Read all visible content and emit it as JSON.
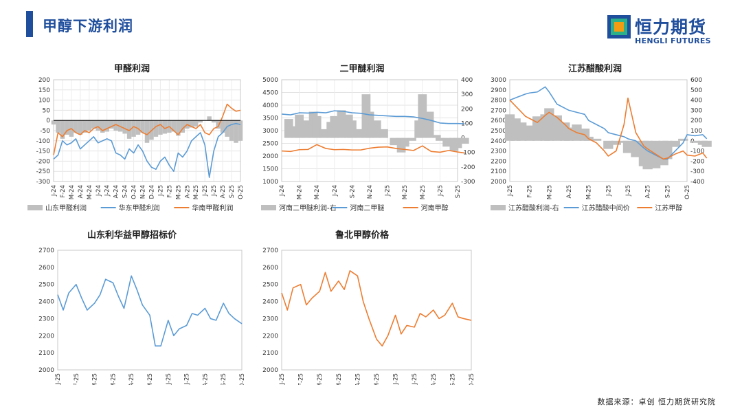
{
  "header": {
    "title": "甲醇下游利润"
  },
  "logo": {
    "name_cn": "恒力期货",
    "name_en": "HENGLI FUTURES",
    "colors": {
      "blue": "#1f4e9c",
      "orange": "#f39c12",
      "green": "#2bb08a"
    }
  },
  "footer": {
    "source": "数据来源：卓创  恒力期货研究院"
  },
  "chart_data": [
    {
      "id": "c1",
      "type": "line+area",
      "title": "甲醛利润",
      "ylim": [
        -300,
        200
      ],
      "yticks": [
        200,
        150,
        100,
        50,
        0,
        -50,
        -100,
        -150,
        -200,
        -250,
        -300
      ],
      "x_labels": [
        "J-24",
        "F-24",
        "M-24",
        "A-24",
        "M-24",
        "J-24",
        "J-24",
        "A-24",
        "S-24",
        "O-24",
        "N-24",
        "D-24",
        "J-25",
        "F-25",
        "M-25",
        "A-25",
        "M-25",
        "J-25",
        "J-25",
        "A-25",
        "S-25",
        "O-25"
      ],
      "legend": "bottom",
      "grid": true,
      "series": [
        {
          "name": "山东甲醛利润",
          "kind": "area",
          "color": "#bfbfbf",
          "x": [
            0,
            0.5,
            1,
            1.5,
            2,
            2.5,
            3,
            3.5,
            4,
            4.5,
            5,
            5.5,
            6,
            6.5,
            7,
            7.5,
            8,
            8.5,
            9,
            9.5,
            10,
            10.5,
            11,
            11.5,
            12,
            12.5,
            13,
            13.5,
            14,
            14.5,
            15,
            15.5,
            16,
            16.5,
            17,
            17.5,
            18,
            18.5,
            19,
            19.5,
            20,
            20.5,
            21
          ],
          "y": [
            -20,
            -60,
            -90,
            -70,
            -80,
            -60,
            -70,
            -60,
            -50,
            -40,
            -50,
            -60,
            -55,
            -40,
            -50,
            -55,
            -65,
            -90,
            -80,
            -70,
            -60,
            -110,
            -95,
            -80,
            -70,
            -65,
            -60,
            -55,
            -75,
            -60,
            -40,
            -35,
            -30,
            -10,
            0,
            20,
            -10,
            -40,
            -60,
            -80,
            -100,
            -110,
            -100
          ]
        },
        {
          "name": "华东甲醛利润",
          "kind": "line",
          "color": "#5b9bd5",
          "x": [
            0,
            0.5,
            1,
            1.5,
            2,
            2.5,
            3,
            3.5,
            4,
            4.5,
            5,
            5.5,
            6,
            6.5,
            7,
            7.5,
            8,
            8.5,
            9,
            9.5,
            10,
            10.5,
            11,
            11.5,
            12,
            12.5,
            13,
            13.5,
            14,
            14.5,
            15,
            15.5,
            16,
            16.5,
            17,
            17.5,
            18,
            18.5,
            19,
            19.5,
            20,
            20.5,
            21
          ],
          "y": [
            -190,
            -170,
            -100,
            -120,
            -110,
            -90,
            -140,
            -120,
            -100,
            -80,
            -110,
            -100,
            -90,
            -100,
            -160,
            -170,
            -190,
            -140,
            -160,
            -120,
            -150,
            -200,
            -230,
            -240,
            -200,
            -180,
            -220,
            -250,
            -160,
            -180,
            -150,
            -100,
            -80,
            -60,
            -120,
            -280,
            -150,
            -80,
            -60,
            -30,
            -20,
            -15,
            -20
          ]
        },
        {
          "name": "华南甲醛利润",
          "kind": "line",
          "color": "#ed7d31",
          "x": [
            0,
            0.5,
            1,
            1.5,
            2,
            2.5,
            3,
            3.5,
            4,
            4.5,
            5,
            5.5,
            6,
            6.5,
            7,
            7.5,
            8,
            8.5,
            9,
            9.5,
            10,
            10.5,
            11,
            11.5,
            12,
            12.5,
            13,
            13.5,
            14,
            14.5,
            15,
            15.5,
            16,
            16.5,
            17,
            17.5,
            18,
            18.5,
            19,
            19.5,
            20,
            20.5,
            21
          ],
          "y": [
            -170,
            -60,
            -80,
            -50,
            -40,
            -60,
            -70,
            -50,
            -60,
            -40,
            -30,
            -50,
            -40,
            -30,
            -20,
            -30,
            -40,
            -50,
            -30,
            -40,
            -60,
            -70,
            -50,
            -30,
            -20,
            -40,
            -30,
            -50,
            -70,
            -40,
            -20,
            -30,
            -40,
            -20,
            -60,
            -70,
            -40,
            -30,
            20,
            80,
            60,
            45,
            50
          ]
        }
      ]
    },
    {
      "id": "c2",
      "type": "line+area",
      "title": "二甲醚利润",
      "ylim": [
        1000,
        5000
      ],
      "y2lim": [
        -300,
        400
      ],
      "yticks": [
        5000,
        4500,
        4000,
        3500,
        3000,
        2500,
        2000,
        1500,
        1000
      ],
      "y2ticks": [
        400,
        300,
        200,
        100,
        0,
        -100,
        -200,
        -300
      ],
      "x_labels": [
        "J-24",
        "M-24",
        "M-24",
        "J-24",
        "S-24",
        "N-24",
        "J-25",
        "M-25",
        "M-25",
        "J-25",
        "S-25"
      ],
      "legend": "bottom",
      "grid": true,
      "series": [
        {
          "name": "河南二甲醚利润-右",
          "kind": "area",
          "axis": "right",
          "color": "#bfbfbf",
          "x": [
            0,
            0.4,
            0.8,
            1,
            1.4,
            1.8,
            2,
            2.4,
            2.8,
            3,
            3.4,
            3.8,
            4,
            4.4,
            4.8,
            5,
            5.4,
            5.8,
            6,
            6.4,
            6.8,
            7,
            7.4,
            7.8,
            8,
            8.4,
            8.8,
            9,
            9.4,
            9.8,
            10,
            10.4
          ],
          "y": [
            0,
            130,
            80,
            160,
            120,
            180,
            150,
            60,
            110,
            150,
            190,
            160,
            120,
            60,
            300,
            180,
            120,
            60,
            0,
            -50,
            -100,
            -60,
            -20,
            120,
            300,
            180,
            20,
            -20,
            -60,
            -90,
            -70,
            -40
          ]
        },
        {
          "name": "河南二甲醚",
          "kind": "line",
          "axis": "left",
          "color": "#5b9bd5",
          "x": [
            0,
            0.5,
            1,
            1.5,
            2,
            2.5,
            3,
            3.5,
            4,
            4.5,
            5,
            5.5,
            6,
            6.5,
            7,
            7.5,
            8,
            8.5,
            9,
            9.5,
            10,
            10.4
          ],
          "y": [
            3650,
            3620,
            3700,
            3690,
            3720,
            3700,
            3780,
            3760,
            3700,
            3680,
            3620,
            3600,
            3580,
            3560,
            3560,
            3540,
            3480,
            3400,
            3300,
            3280,
            3280,
            3270
          ]
        },
        {
          "name": "河南甲醇",
          "kind": "line",
          "axis": "left",
          "color": "#ed7d31",
          "x": [
            0,
            0.5,
            1,
            1.5,
            2,
            2.5,
            3,
            3.5,
            4,
            4.5,
            5,
            5.5,
            6,
            6.5,
            7,
            7.5,
            8,
            8.5,
            9,
            9.5,
            10,
            10.4
          ],
          "y": [
            2200,
            2180,
            2250,
            2260,
            2450,
            2300,
            2250,
            2260,
            2240,
            2240,
            2310,
            2350,
            2360,
            2300,
            2260,
            2220,
            2400,
            2180,
            2150,
            2220,
            2160,
            2120
          ]
        }
      ]
    },
    {
      "id": "c3",
      "type": "line+area",
      "title": "江苏醋酸利润",
      "ylim": [
        2000,
        3000
      ],
      "y2lim": [
        -400,
        600
      ],
      "yticks": [
        3000,
        2900,
        2800,
        2700,
        2600,
        2500,
        2400,
        2300,
        2200,
        2100,
        2000
      ],
      "y2ticks": [
        600,
        500,
        400,
        300,
        200,
        100,
        0,
        -100,
        -200,
        -300,
        -400
      ],
      "x_labels": [
        "J-25",
        "F-25",
        "M-25",
        "A-25",
        "M-25",
        "J-25",
        "J-25",
        "A-25",
        "S-25",
        "O-25"
      ],
      "legend": "bottom",
      "grid": false,
      "series": [
        {
          "name": "江苏醋酸利润-右",
          "kind": "area",
          "axis": "right",
          "color": "#bfbfbf",
          "x": [
            0,
            0.3,
            0.6,
            1,
            1.4,
            1.8,
            2,
            2.4,
            2.8,
            3,
            3.4,
            3.8,
            4,
            4.4,
            4.8,
            5,
            5.4,
            5.8,
            6,
            6.4,
            6.8,
            7,
            7.4,
            7.8,
            8,
            8.4,
            8.8,
            9,
            9.4,
            9.8,
            10
          ],
          "y": [
            260,
            220,
            180,
            150,
            240,
            260,
            320,
            250,
            180,
            130,
            160,
            120,
            40,
            20,
            0,
            -80,
            -40,
            -20,
            -120,
            -160,
            -250,
            -280,
            -270,
            -240,
            -180,
            -60,
            20,
            0,
            -20,
            -40,
            -60
          ]
        },
        {
          "name": "江苏醋酸中间价",
          "kind": "line",
          "axis": "left",
          "color": "#5b9bd5",
          "x": [
            0,
            0.4,
            0.8,
            1,
            1.4,
            1.8,
            2,
            2.4,
            2.8,
            3,
            3.4,
            3.8,
            4,
            4.4,
            4.8,
            5,
            5.4,
            5.8,
            6,
            6.4,
            6.8,
            7,
            7.4,
            7.8,
            8,
            8.4,
            8.8,
            9,
            9.4,
            9.8,
            10
          ],
          "y": [
            2800,
            2830,
            2860,
            2870,
            2880,
            2930,
            2880,
            2760,
            2720,
            2700,
            2680,
            2660,
            2600,
            2560,
            2520,
            2480,
            2460,
            2440,
            2420,
            2400,
            2330,
            2300,
            2260,
            2220,
            2220,
            2300,
            2380,
            2460,
            2450,
            2460,
            2420
          ]
        },
        {
          "name": "江苏甲醇",
          "kind": "line",
          "axis": "left",
          "color": "#ed7d31",
          "x": [
            0,
            0.4,
            0.8,
            1,
            1.4,
            1.8,
            2,
            2.4,
            2.8,
            3,
            3.4,
            3.8,
            4,
            4.4,
            4.8,
            5,
            5.4,
            5.8,
            6,
            6.4,
            6.8,
            7,
            7.4,
            7.8,
            8,
            8.4,
            8.8,
            9,
            9.4,
            9.8,
            10
          ],
          "y": [
            2800,
            2720,
            2640,
            2620,
            2580,
            2650,
            2680,
            2630,
            2560,
            2520,
            2480,
            2460,
            2420,
            2380,
            2300,
            2250,
            2300,
            2560,
            2820,
            2480,
            2350,
            2320,
            2270,
            2220,
            2230,
            2270,
            2300,
            2260,
            2250,
            2280,
            2230
          ]
        }
      ]
    },
    {
      "id": "c4",
      "type": "line",
      "title": "山东利华益甲醇招标价",
      "ylim": [
        2000,
        2700
      ],
      "yticks": [
        2700,
        2600,
        2500,
        2400,
        2300,
        2200,
        2100,
        2000
      ],
      "x_labels": [
        "J-25",
        "F-25",
        "M-25",
        "M-25",
        "A-25",
        "M-25",
        "J-25",
        "J-25",
        "A-25",
        "S-25",
        "O-25"
      ],
      "legend": "none",
      "grid": false,
      "series": [
        {
          "name": "",
          "kind": "line",
          "color": "#5b9bd5",
          "x": [
            0,
            0.3,
            0.6,
            1,
            1.3,
            1.6,
            2,
            2.3,
            2.6,
            3,
            3.3,
            3.6,
            4,
            4.3,
            4.6,
            5,
            5.3,
            5.6,
            6,
            6.3,
            6.6,
            7,
            7.3,
            7.6,
            8,
            8.3,
            8.6,
            9,
            9.3,
            9.6,
            10
          ],
          "y": [
            2440,
            2350,
            2450,
            2500,
            2420,
            2350,
            2390,
            2440,
            2530,
            2510,
            2430,
            2360,
            2550,
            2470,
            2380,
            2320,
            2140,
            2140,
            2290,
            2200,
            2240,
            2260,
            2330,
            2320,
            2360,
            2300,
            2290,
            2390,
            2330,
            2300,
            2270
          ]
        }
      ]
    },
    {
      "id": "c5",
      "type": "line",
      "title": "鲁北甲醇价格",
      "ylim": [
        2000,
        2700
      ],
      "yticks": [
        2700,
        2600,
        2500,
        2400,
        2300,
        2200,
        2100,
        2000
      ],
      "x_labels": [
        "J-25",
        "F-25",
        "M-25",
        "M-25",
        "A-25",
        "M-25",
        "J-25",
        "J-25",
        "A-25",
        "S-25",
        "O-25"
      ],
      "legend": "none",
      "grid": false,
      "series": [
        {
          "name": "",
          "kind": "line",
          "color": "#ed7d31",
          "x": [
            0,
            0.3,
            0.6,
            1,
            1.3,
            1.6,
            2,
            2.3,
            2.6,
            3,
            3.3,
            3.6,
            4,
            4.3,
            4.6,
            5,
            5.3,
            5.6,
            6,
            6.3,
            6.6,
            7,
            7.3,
            7.6,
            8,
            8.3,
            8.6,
            9,
            9.3,
            9.6,
            10
          ],
          "y": [
            2450,
            2350,
            2480,
            2500,
            2380,
            2420,
            2460,
            2570,
            2460,
            2520,
            2470,
            2580,
            2550,
            2400,
            2300,
            2180,
            2140,
            2200,
            2320,
            2210,
            2260,
            2250,
            2330,
            2310,
            2350,
            2300,
            2320,
            2390,
            2310,
            2300,
            2290
          ]
        }
      ]
    }
  ]
}
